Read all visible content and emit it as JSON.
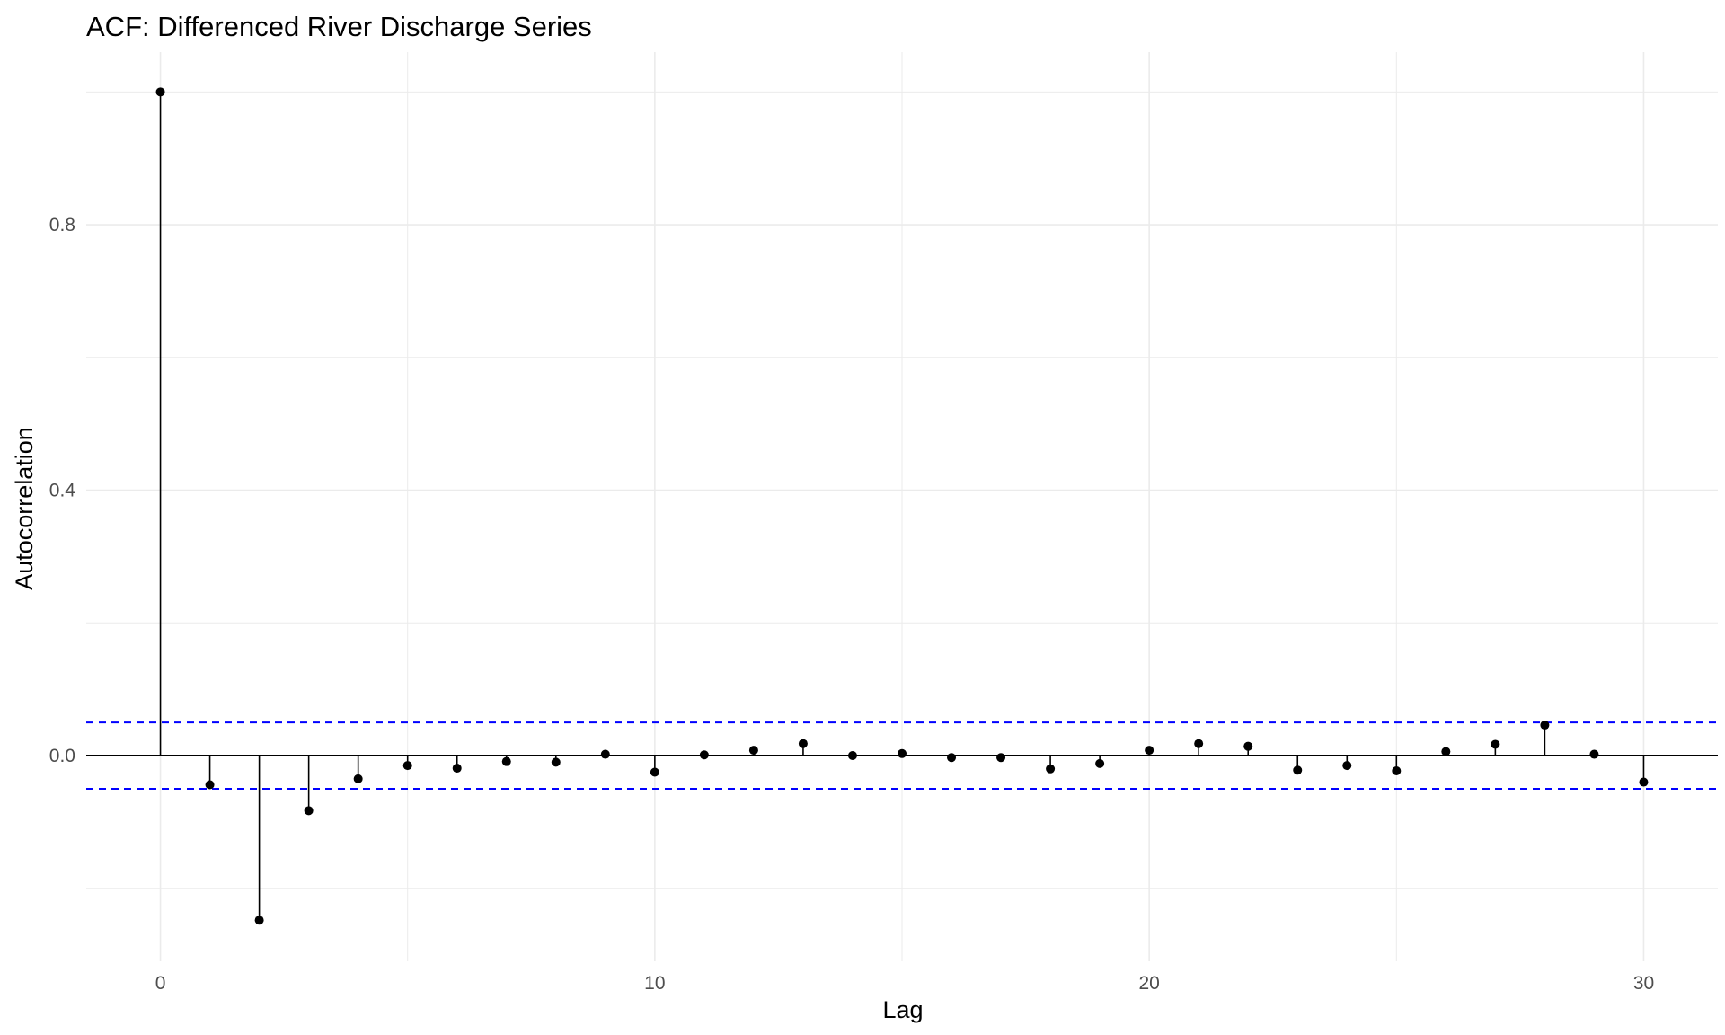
{
  "chart_data": {
    "type": "bar",
    "title": "ACF: Differenced River Discharge Series",
    "xlabel": "Lag",
    "ylabel": "Autocorrelation",
    "x": [
      0,
      1,
      2,
      3,
      4,
      5,
      6,
      7,
      8,
      9,
      10,
      11,
      12,
      13,
      14,
      15,
      16,
      17,
      18,
      19,
      20,
      21,
      22,
      23,
      24,
      25,
      26,
      27,
      28,
      29,
      30
    ],
    "values": [
      1.0,
      -0.044,
      -0.248,
      -0.083,
      -0.035,
      -0.015,
      -0.019,
      -0.009,
      -0.01,
      0.002,
      -0.025,
      0.001,
      0.008,
      0.018,
      0.0,
      0.003,
      -0.003,
      -0.003,
      -0.02,
      -0.012,
      0.008,
      0.018,
      0.014,
      -0.022,
      -0.015,
      -0.023,
      0.006,
      0.017,
      0.046,
      0.002,
      -0.04
    ],
    "confidence_bound": 0.05,
    "xlim": [
      -1.5,
      31.5
    ],
    "ylim": [
      -0.31,
      1.06
    ],
    "x_ticks": [
      0,
      10,
      20,
      30
    ],
    "x_tick_labels": [
      "0",
      "10",
      "20",
      "30"
    ],
    "y_ticks": [
      0.0,
      0.4,
      0.8
    ],
    "y_tick_labels": [
      "0.0",
      "0.4",
      "0.8"
    ],
    "grid": true,
    "colors": {
      "stems": "#000000",
      "points": "#000000",
      "zero_line": "#000000",
      "confidence_lines": "#0000ff",
      "grid": "#ebebeb",
      "background": "#ffffff"
    }
  }
}
